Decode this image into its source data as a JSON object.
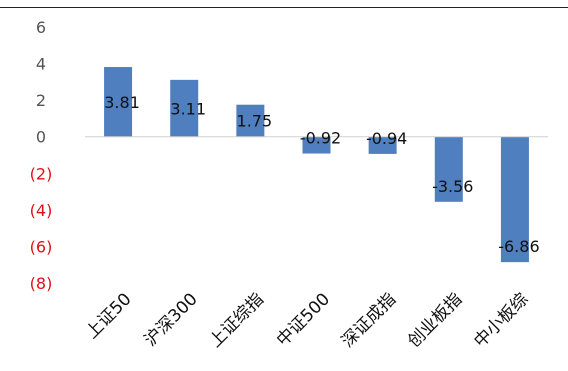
{
  "chart_data": {
    "type": "bar",
    "categories": [
      "上证50",
      "沪深300",
      "上证综指",
      "中证500",
      "深证成指",
      "创业板指",
      "中小板综"
    ],
    "values": [
      3.81,
      3.11,
      1.75,
      -0.92,
      -0.94,
      -3.56,
      -6.86
    ],
    "value_labels": [
      "3.81",
      "3.11",
      "1.75",
      "-0.92",
      "-0.94",
      "-3.56",
      "-6.86"
    ],
    "ylim": [
      -8,
      6
    ],
    "yticks": [
      6,
      4,
      2,
      0,
      -2,
      -4,
      -6,
      -8
    ],
    "ytick_labels": [
      "6",
      "4",
      "2",
      "0",
      "(2)",
      "(4)",
      "(6)",
      "(8)"
    ],
    "title": "",
    "xlabel": "",
    "ylabel": "",
    "grid": false,
    "colors": {
      "bar": "#4f7fbf",
      "positive_tick": "#555555",
      "negative_tick": "#e0101a",
      "axis": "#d0d0d0"
    }
  }
}
